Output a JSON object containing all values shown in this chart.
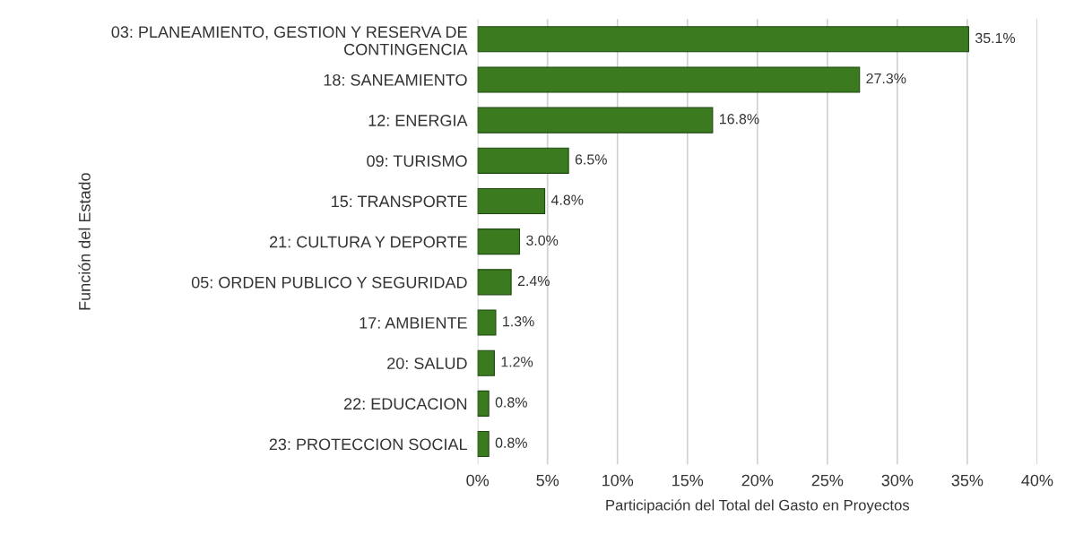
{
  "chart_data": {
    "type": "bar",
    "orientation": "horizontal",
    "xlabel": "Participación del Total del Gasto en Proyectos",
    "ylabel": "Función del Estado",
    "categories": [
      "03: PLANEAMIENTO, GESTION Y RESERVA DE\nCONTINGENCIA",
      "18: SANEAMIENTO",
      "12: ENERGIA",
      "09: TURISMO",
      "15: TRANSPORTE",
      "21: CULTURA Y DEPORTE",
      "05: ORDEN PUBLICO Y SEGURIDAD",
      "17: AMBIENTE",
      "20: SALUD",
      "22: EDUCACION",
      "23: PROTECCION SOCIAL"
    ],
    "values": [
      35.1,
      27.3,
      16.8,
      6.5,
      4.8,
      3.0,
      2.4,
      1.3,
      1.2,
      0.8,
      0.8
    ],
    "value_labels": [
      "35.1%",
      "27.3%",
      "16.8%",
      "6.5%",
      "4.8%",
      "3.0%",
      "2.4%",
      "1.3%",
      "1.2%",
      "0.8%",
      "0.8%"
    ],
    "color": "#3b7a1f",
    "xlim": [
      0,
      40
    ],
    "xticks": [
      {
        "value": 0,
        "label": "0%"
      },
      {
        "value": 5,
        "label": "5%"
      },
      {
        "value": 10,
        "label": "10%"
      },
      {
        "value": 15,
        "label": "15%"
      },
      {
        "value": 20,
        "label": "20%"
      },
      {
        "value": 25,
        "label": "25%"
      },
      {
        "value": 30,
        "label": "30%"
      },
      {
        "value": 35,
        "label": "35%"
      },
      {
        "value": 40,
        "label": "40%"
      }
    ],
    "grid": "x"
  }
}
